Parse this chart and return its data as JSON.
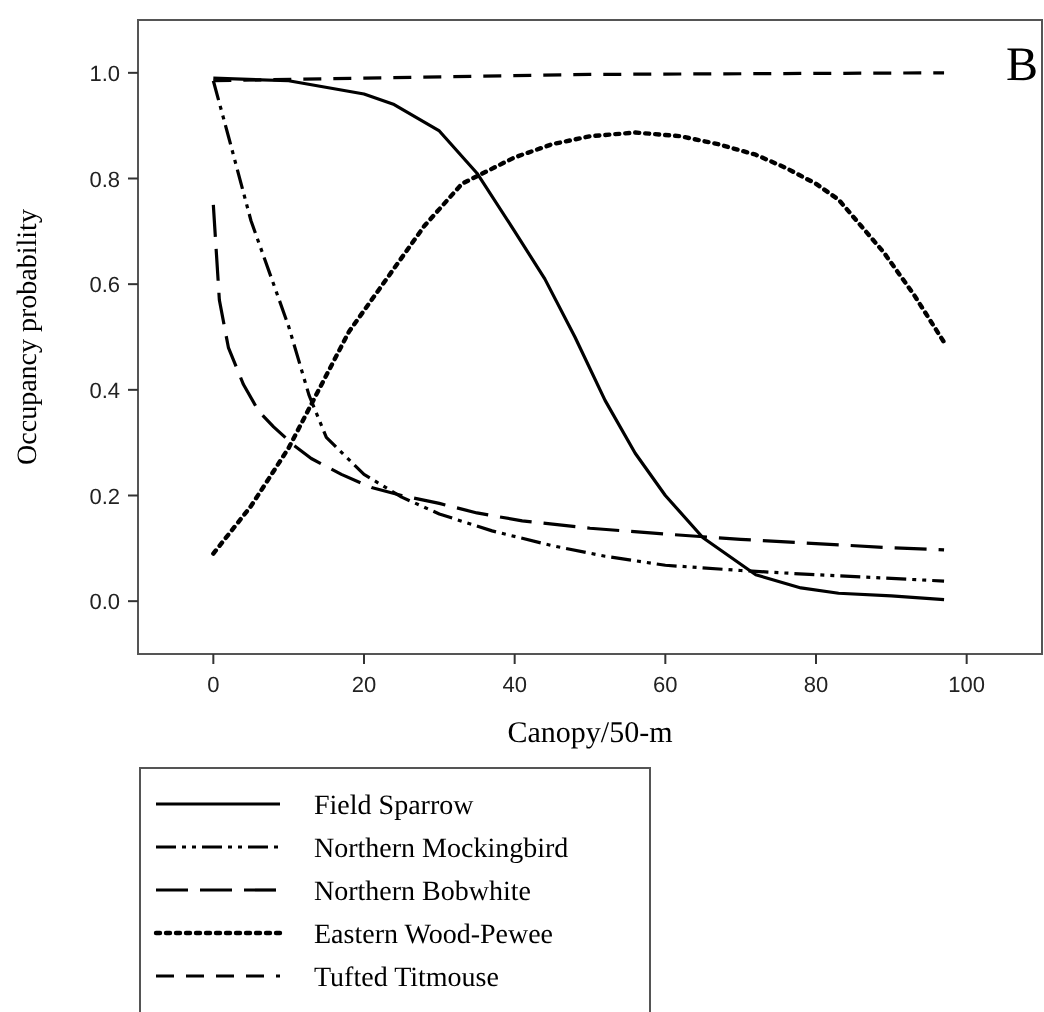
{
  "chart_data": {
    "type": "line",
    "xlabel": "Canopy/50-m",
    "ylabel": "Occupancy probability",
    "annotations": [
      "B"
    ],
    "xlim": [
      -10,
      110
    ],
    "ylim": [
      -0.1,
      1.1
    ],
    "xticks": [
      0,
      20,
      40,
      60,
      80,
      100
    ],
    "yticks": [
      {
        "value": 0,
        "label": "0.0"
      },
      {
        "value": 0.2,
        "label": "0.2"
      },
      {
        "value": 0.4,
        "label": "0.4"
      },
      {
        "value": 0.6,
        "label": "0.6"
      },
      {
        "value": 0.8,
        "label": "0.8"
      },
      {
        "value": 1,
        "label": "1.0"
      }
    ],
    "grid": false,
    "legend": "bottom",
    "marker": "none",
    "series": [
      {
        "name": "Field Sparrow",
        "color": "#000000",
        "line_style": "solid",
        "x": [
          0,
          10,
          20,
          24,
          30,
          35,
          40,
          44,
          48,
          52,
          56,
          60,
          65,
          72,
          78,
          83,
          90,
          97
        ],
        "values": [
          0.99,
          0.985,
          0.96,
          0.94,
          0.89,
          0.81,
          0.7,
          0.61,
          0.5,
          0.38,
          0.28,
          0.2,
          0.12,
          0.05,
          0.025,
          0.015,
          0.01,
          0.003
        ]
      },
      {
        "name": "Northern Mockingbird",
        "color": "#000000",
        "line_style": "dashed",
        "x": [
          0,
          2,
          5,
          7.5,
          10,
          12.7,
          15,
          20,
          25,
          30,
          37,
          45,
          52,
          60,
          70,
          80,
          90,
          97
        ],
        "values": [
          0.985,
          0.88,
          0.72,
          0.62,
          0.52,
          0.39,
          0.31,
          0.24,
          0.197,
          0.165,
          0.133,
          0.105,
          0.085,
          0.068,
          0.058,
          0.05,
          0.043,
          0.038
        ]
      },
      {
        "name": "Northern Bobwhite",
        "color": "#000000",
        "line_style": "dashed",
        "x": [
          0,
          0.8,
          2,
          4,
          6,
          8,
          10.6,
          13,
          17,
          21,
          25,
          30,
          35,
          41,
          50,
          60,
          70,
          80,
          90,
          97
        ],
        "values": [
          0.75,
          0.57,
          0.48,
          0.41,
          0.36,
          0.33,
          0.296,
          0.27,
          0.24,
          0.215,
          0.2,
          0.185,
          0.167,
          0.152,
          0.138,
          0.127,
          0.117,
          0.109,
          0.101,
          0.097
        ]
      },
      {
        "name": "Eastern Wood-Pewee",
        "color": "#000000",
        "line_style": "dotted",
        "x": [
          0,
          5,
          10,
          14,
          18,
          23,
          28,
          33,
          40,
          45,
          50,
          56,
          62,
          67,
          72,
          76,
          80,
          83,
          86,
          89,
          93,
          97
        ],
        "values": [
          0.09,
          0.18,
          0.29,
          0.4,
          0.51,
          0.61,
          0.71,
          0.79,
          0.84,
          0.865,
          0.88,
          0.887,
          0.88,
          0.865,
          0.845,
          0.82,
          0.79,
          0.76,
          0.71,
          0.66,
          0.58,
          0.49
        ]
      },
      {
        "name": "Tufted Titmouse",
        "color": "#000000",
        "line_style": "dashed",
        "x": [
          0,
          20,
          50,
          97
        ],
        "values": [
          0.985,
          0.99,
          0.997,
          1.0
        ]
      }
    ]
  }
}
